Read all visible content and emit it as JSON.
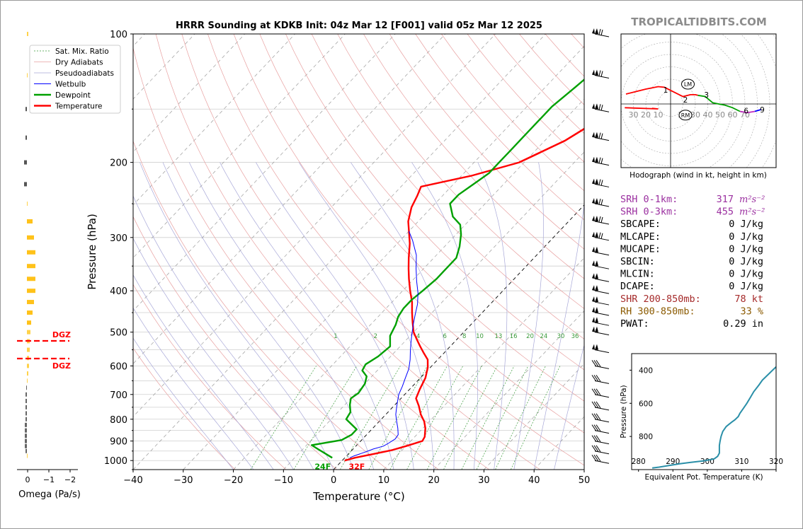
{
  "site": "TROPICALTIDBITS.COM",
  "chart_data": [
    {
      "type": "line",
      "title": "HRRR Sounding at KDKB Init: 04z Mar 12 [F001] valid 05z Mar 12 2025",
      "xlabel": "Temperature (°C)",
      "ylabel": "Pressure (hPa)",
      "xlim": [
        -40,
        50
      ],
      "ylim": [
        1050,
        100
      ],
      "y_scale": "log",
      "x_ticks": [
        "−40",
        "−30",
        "−20",
        "−10",
        "0",
        "10",
        "20",
        "30",
        "40",
        "50"
      ],
      "y_ticks": [
        "100",
        "200",
        "300",
        "400",
        "500",
        "600",
        "700",
        "800",
        "900",
        "1000"
      ],
      "legend": [
        "Sat. Mix. Ratio",
        "Dry Adiabats",
        "Pseudoadiabats",
        "Wetbulb",
        "Dewpoint",
        "Temperature"
      ],
      "mixing_ratio_labels": [
        "1",
        "2",
        "4",
        "6",
        "8",
        "10",
        "13",
        "16",
        "20",
        "24",
        "30",
        "36"
      ],
      "surface_labels": {
        "dewpoint": "24F",
        "temperature": "32F"
      },
      "series": [
        {
          "name": "Temperature",
          "color": "#ff0000",
          "points": [
            [
              0.5,
              1000
            ],
            [
              2,
              985
            ],
            [
              5,
              965
            ],
            [
              8,
              945
            ],
            [
              10,
              925
            ],
            [
              12.3,
              900
            ],
            [
              12,
              880
            ],
            [
              10.5,
              840
            ],
            [
              9,
              810
            ],
            [
              7,
              780
            ],
            [
              5,
              745
            ],
            [
              3,
              715
            ],
            [
              2,
              680
            ],
            [
              1,
              640
            ],
            [
              -0.5,
              605
            ],
            [
              -2,
              580
            ],
            [
              -4,
              560
            ],
            [
              -6,
              540
            ],
            [
              -8,
              520
            ],
            [
              -10,
              500
            ],
            [
              -12,
              475
            ],
            [
              -14,
              450
            ],
            [
              -16,
              425
            ],
            [
              -18.5,
              400
            ],
            [
              -21,
              375
            ],
            [
              -23,
              355
            ],
            [
              -25,
              335
            ],
            [
              -27.5,
              310
            ],
            [
              -30,
              290
            ],
            [
              -32,
              275
            ],
            [
              -34,
              255
            ],
            [
              -35,
              240
            ],
            [
              -36,
              228
            ],
            [
              -28,
              215
            ],
            [
              -21,
              200
            ],
            [
              -16,
              178
            ],
            [
              -13,
              158
            ],
            [
              -11,
              140
            ],
            [
              -8,
              122
            ],
            [
              -6,
              110
            ],
            [
              -4,
              100
            ]
          ]
        },
        {
          "name": "Dewpoint",
          "color": "#00a000",
          "points": [
            [
              -2.5,
              985
            ],
            [
              -7,
              940
            ],
            [
              -9,
              920
            ],
            [
              -4,
              895
            ],
            [
              -3,
              870
            ],
            [
              -3,
              845
            ],
            [
              -7,
              800
            ],
            [
              -7.5,
              770
            ],
            [
              -9,
              740
            ],
            [
              -10,
              715
            ],
            [
              -9.5,
              695
            ],
            [
              -10,
              660
            ],
            [
              -11,
              635
            ],
            [
              -13,
              615
            ],
            [
              -13.5,
              595
            ],
            [
              -12.5,
              570
            ],
            [
              -12,
              540
            ],
            [
              -14,
              510
            ],
            [
              -15,
              480
            ],
            [
              -16,
              460
            ],
            [
              -16.5,
              440
            ],
            [
              -16.5,
              420
            ],
            [
              -16,
              400
            ],
            [
              -15.5,
              375
            ],
            [
              -15.5,
              355
            ],
            [
              -15.5,
              335
            ],
            [
              -17,
              315
            ],
            [
              -19,
              295
            ],
            [
              -21,
              280
            ],
            [
              -24,
              268
            ],
            [
              -27,
              250
            ],
            [
              -27,
              238
            ],
            [
              -26,
              225
            ],
            [
              -25,
              212
            ],
            [
              -25,
              200
            ],
            [
              -25,
              188
            ],
            [
              -25,
              175
            ],
            [
              -25,
              160
            ],
            [
              -25,
              148
            ],
            [
              -24,
              133
            ],
            [
              -23,
              118
            ],
            [
              -17,
              108
            ],
            [
              -10,
              100
            ]
          ]
        },
        {
          "name": "Wetbulb",
          "color": "#0000ff",
          "points": [
            [
              1,
              985
            ],
            [
              1.5,
              975
            ],
            [
              3,
              955
            ],
            [
              4,
              940
            ],
            [
              5.5,
              925
            ],
            [
              6,
              910
            ],
            [
              6.5,
              890
            ],
            [
              6.3,
              870
            ],
            [
              5,
              840
            ],
            [
              3.5,
              810
            ],
            [
              2,
              780
            ],
            [
              1,
              755
            ],
            [
              0,
              730
            ],
            [
              -1.2,
              700
            ],
            [
              -2,
              670
            ],
            [
              -3,
              640
            ],
            [
              -4,
              610
            ],
            [
              -5.5,
              580
            ],
            [
              -7,
              555
            ],
            [
              -8.5,
              530
            ],
            [
              -10,
              505
            ],
            [
              -11.5,
              480
            ],
            [
              -13,
              455
            ],
            [
              -14.5,
              430
            ],
            [
              -16.5,
              405
            ],
            [
              -19,
              380
            ],
            [
              -21.5,
              355
            ],
            [
              -24,
              330
            ],
            [
              -27.5,
              305
            ],
            [
              -30,
              290
            ]
          ]
        },
        {
          "name": "Temperature (upper)",
          "color": "#ff0000",
          "points": [
            [
              -21,
              200
            ],
            [
              -16,
              178
            ],
            [
              -13,
              158
            ],
            [
              -11,
              140
            ],
            [
              -8,
              122
            ],
            [
              -6,
              110
            ],
            [
              -4,
              100
            ]
          ]
        }
      ],
      "annotations": [
        "DGZ",
        "DGZ"
      ]
    },
    {
      "type": "line",
      "title": "Hodograph (wind in kt, height in km)",
      "ring_labels": [
        "30",
        "20",
        "10",
        "20",
        "30",
        "40",
        "50",
        "60",
        "70"
      ],
      "height_labels": [
        "1",
        "2",
        "3",
        "6",
        "9"
      ],
      "markers": [
        "LM",
        "RM"
      ]
    },
    {
      "type": "line",
      "xlabel": "Equivalent Pot. Temperature (K)",
      "ylabel": "Pressure (hPa)",
      "x_ticks": [
        "280",
        "290",
        "300",
        "310",
        "320"
      ],
      "y_ticks": [
        "400",
        "600",
        "800"
      ],
      "xlim": [
        278,
        320
      ],
      "ylim": [
        1000,
        300
      ],
      "points": [
        [
          284,
          990
        ],
        [
          286,
          985
        ],
        [
          289,
          975
        ],
        [
          292,
          965
        ],
        [
          295,
          957
        ],
        [
          299,
          947
        ],
        [
          302,
          935
        ],
        [
          303,
          920
        ],
        [
          303.5,
          900
        ],
        [
          303.5,
          880
        ],
        [
          303.5,
          855
        ],
        [
          303.7,
          830
        ],
        [
          304,
          800
        ],
        [
          304.5,
          770
        ],
        [
          305.5,
          740
        ],
        [
          307,
          715
        ],
        [
          308,
          700
        ],
        [
          309,
          680
        ],
        [
          309.5,
          660
        ],
        [
          310.5,
          630
        ],
        [
          311.5,
          600
        ],
        [
          312.5,
          565
        ],
        [
          313.5,
          530
        ],
        [
          315,
          490
        ],
        [
          316,
          460
        ],
        [
          318,
          420
        ],
        [
          319,
          400
        ],
        [
          320,
          380
        ]
      ]
    },
    {
      "type": "bar",
      "xlabel": "Omega (Pa/s)",
      "x_ticks": [
        "0",
        "−1",
        "−2"
      ]
    }
  ],
  "indices": [
    {
      "label": "SRH 0-1km:",
      "value": "317",
      "unit": "m²s⁻²",
      "color": "#9b30a0"
    },
    {
      "label": "SRH 0-3km:",
      "value": "455",
      "unit": "m²s⁻²",
      "color": "#9b30a0"
    },
    {
      "label": "SBCAPE:",
      "value": "0 J/kg",
      "color": "#000000"
    },
    {
      "label": "MLCAPE:",
      "value": "0 J/kg",
      "color": "#000000"
    },
    {
      "label": "MUCAPE:",
      "value": "0 J/kg",
      "color": "#000000"
    },
    {
      "label": "SBCIN:",
      "value": "0 J/kg",
      "color": "#000000"
    },
    {
      "label": "MLCIN:",
      "value": "0 J/kg",
      "color": "#000000"
    },
    {
      "label": "DCAPE:",
      "value": "0 J/kg",
      "color": "#000000"
    },
    {
      "label": "SHR 200-850mb:",
      "value": "78 kt",
      "color": "#a52a2a"
    },
    {
      "label": "RH 300-850mb:",
      "value": "33 %",
      "color": "#8b5a00"
    },
    {
      "label": "PWAT:",
      "value": "0.29 in",
      "color": "#000000"
    }
  ]
}
